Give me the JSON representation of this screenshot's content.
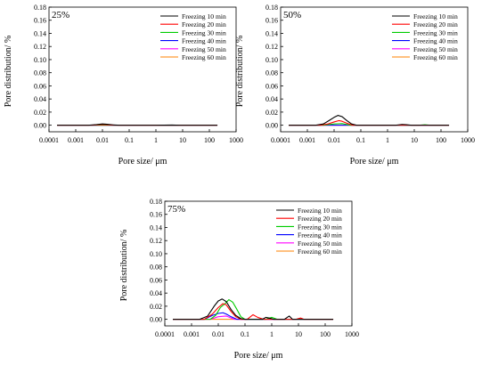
{
  "chart_data": [
    {
      "type": "line",
      "title": "25%",
      "xlabel": "Pore size/ μm",
      "ylabel": "Pore distribution/ %",
      "xscale": "log",
      "xlim": [
        0.0001,
        1000
      ],
      "ylim": [
        -0.01,
        0.18
      ],
      "xticks": [
        "0.0001",
        "0.001",
        "0.01",
        "0.1",
        "1",
        "10",
        "100",
        "1000"
      ],
      "yticks": [
        "0.00",
        "0.02",
        "0.04",
        "0.06",
        "0.08",
        "0.10",
        "0.12",
        "0.14",
        "0.16",
        "0.18"
      ],
      "legend": "top-right",
      "grid": false,
      "series": [
        {
          "name": "Freezing 10 min",
          "color": "#000000",
          "x": [
            0.0002,
            0.003,
            0.006,
            0.01,
            0.015,
            0.025,
            0.045,
            1,
            4,
            8,
            200
          ],
          "y": [
            0,
            0,
            0.001,
            0.002,
            0.0015,
            0.0005,
            0,
            0,
            0.0003,
            0,
            0
          ]
        },
        {
          "name": "Freezing 20 min",
          "color": "#ff0000",
          "x": [
            0.0002,
            0.004,
            0.01,
            0.03,
            200
          ],
          "y": [
            0,
            0,
            0.001,
            0,
            0
          ]
        },
        {
          "name": "Freezing 30 min",
          "color": "#00cc00",
          "x": [
            0.0002,
            200
          ],
          "y": [
            0,
            0
          ]
        },
        {
          "name": "Freezing 40 min",
          "color": "#0000ff",
          "x": [
            0.0002,
            200
          ],
          "y": [
            0,
            0
          ]
        },
        {
          "name": "Freezing 50 min",
          "color": "#ff00ff",
          "x": [
            0.0002,
            200
          ],
          "y": [
            0,
            0
          ]
        },
        {
          "name": "Freezing 60 min",
          "color": "#ff8000",
          "x": [
            0.0002,
            200
          ],
          "y": [
            0,
            0
          ]
        }
      ]
    },
    {
      "type": "line",
      "title": "50%",
      "xlabel": "Pore size/ μm",
      "ylabel": "Pore distribution/ %",
      "xscale": "log",
      "xlim": [
        0.0001,
        1000
      ],
      "ylim": [
        -0.01,
        0.18
      ],
      "xticks": [
        "0.0001",
        "0.001",
        "0.01",
        "0.1",
        "1",
        "10",
        "100",
        "1000"
      ],
      "yticks": [
        "0.00",
        "0.02",
        "0.04",
        "0.06",
        "0.08",
        "0.10",
        "0.12",
        "0.14",
        "0.16",
        "0.18"
      ],
      "legend": "top-right",
      "grid": false,
      "series": [
        {
          "name": "Freezing 10 min",
          "color": "#000000",
          "x": [
            0.0002,
            0.002,
            0.004,
            0.007,
            0.01,
            0.014,
            0.02,
            0.03,
            0.045,
            0.07,
            2,
            3.5,
            5,
            8,
            200
          ],
          "y": [
            0,
            0,
            0.002,
            0.008,
            0.012,
            0.015,
            0.013,
            0.007,
            0.002,
            0,
            0,
            0.0012,
            0.0008,
            0,
            0
          ]
        },
        {
          "name": "Freezing 20 min",
          "color": "#ff0000",
          "x": [
            0.0002,
            0.003,
            0.006,
            0.01,
            0.015,
            0.02,
            0.03,
            0.05,
            200
          ],
          "y": [
            0,
            0,
            0.002,
            0.005,
            0.007,
            0.006,
            0.003,
            0,
            0
          ]
        },
        {
          "name": "Freezing 30 min",
          "color": "#00cc00",
          "x": [
            0.0002,
            0.004,
            0.01,
            0.02,
            0.04,
            15,
            25,
            40,
            200
          ],
          "y": [
            0,
            0,
            0.002,
            0.0025,
            0,
            0,
            0.0006,
            0,
            0
          ]
        },
        {
          "name": "Freezing 40 min",
          "color": "#0000ff",
          "x": [
            0.0002,
            200
          ],
          "y": [
            0,
            0
          ]
        },
        {
          "name": "Freezing 50 min",
          "color": "#ff00ff",
          "x": [
            0.0002,
            200
          ],
          "y": [
            0,
            0
          ]
        },
        {
          "name": "Freezing 60 min",
          "color": "#ff8000",
          "x": [
            0.0002,
            200
          ],
          "y": [
            0,
            0
          ]
        }
      ]
    },
    {
      "type": "line",
      "title": "75%",
      "xlabel": "Pore size/ μm",
      "ylabel": "Pore distribution/ %",
      "xscale": "log",
      "xlim": [
        0.0001,
        1000
      ],
      "ylim": [
        -0.01,
        0.18
      ],
      "xticks": [
        "0.0001",
        "0.001",
        "0.01",
        "0.1",
        "1",
        "10",
        "100",
        "1000"
      ],
      "yticks": [
        "0.00",
        "0.02",
        "0.04",
        "0.06",
        "0.08",
        "0.10",
        "0.12",
        "0.14",
        "0.16",
        "0.18"
      ],
      "legend": "top-right",
      "grid": false,
      "series": [
        {
          "name": "Freezing 10 min",
          "color": "#000000",
          "x": [
            0.0002,
            0.002,
            0.004,
            0.007,
            0.01,
            0.014,
            0.02,
            0.03,
            0.045,
            0.07,
            0.1,
            0.45,
            0.6,
            0.8,
            1.2,
            3,
            4.5,
            6,
            200
          ],
          "y": [
            0,
            0,
            0.005,
            0.02,
            0.028,
            0.031,
            0.027,
            0.015,
            0.006,
            0.001,
            0,
            0,
            0.003,
            0.002,
            0,
            0,
            0.005,
            0,
            0
          ]
        },
        {
          "name": "Freezing 20 min",
          "color": "#ff0000",
          "x": [
            0.0002,
            0.003,
            0.006,
            0.01,
            0.015,
            0.02,
            0.03,
            0.045,
            0.07,
            0.12,
            0.2,
            0.3,
            0.5,
            8,
            12,
            16,
            200
          ],
          "y": [
            0,
            0,
            0.008,
            0.018,
            0.024,
            0.022,
            0.012,
            0.004,
            0,
            0,
            0.007,
            0.003,
            0,
            0,
            0.002,
            0,
            0
          ]
        },
        {
          "name": "Freezing 30 min",
          "color": "#00cc00",
          "x": [
            0.0002,
            0.005,
            0.008,
            0.012,
            0.018,
            0.025,
            0.035,
            0.05,
            0.07,
            0.1,
            0.6,
            1,
            1.6,
            200
          ],
          "y": [
            0,
            0,
            0.006,
            0.018,
            0.024,
            0.03,
            0.026,
            0.015,
            0.004,
            0,
            0,
            0.003,
            0,
            0
          ]
        },
        {
          "name": "Freezing 40 min",
          "color": "#0000ff",
          "x": [
            0.0002,
            0.003,
            0.006,
            0.01,
            0.015,
            0.02,
            0.03,
            0.05,
            200
          ],
          "y": [
            0,
            0,
            0.006,
            0.009,
            0.01,
            0.008,
            0.004,
            0,
            0
          ]
        },
        {
          "name": "Freezing 50 min",
          "color": "#ff00ff",
          "x": [
            0.0002,
            0.005,
            0.01,
            0.02,
            0.04,
            200
          ],
          "y": [
            0,
            0,
            0.004,
            0.005,
            0,
            0
          ]
        },
        {
          "name": "Freezing 60 min",
          "color": "#ff8000",
          "x": [
            0.0002,
            200
          ],
          "y": [
            0,
            0
          ]
        }
      ]
    }
  ]
}
